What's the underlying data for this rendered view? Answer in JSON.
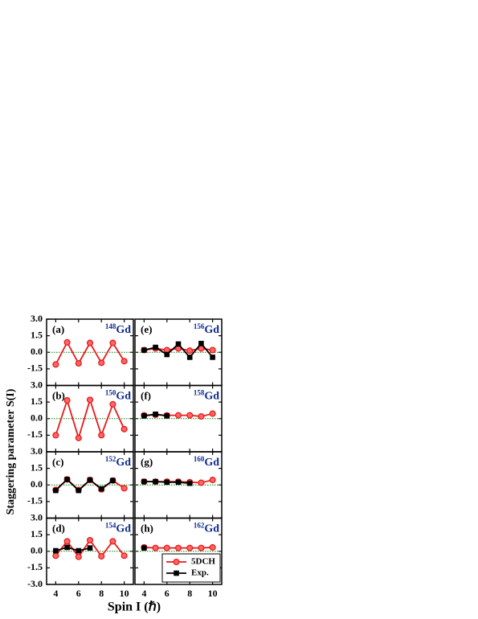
{
  "y_label": "Staggering parameter S(I)",
  "x_label": "Spin I (ℏ)",
  "chart_data": [
    {
      "type": "line",
      "panel": "(a)",
      "nucleus": {
        "mass": "148",
        "symbol": "Gd"
      },
      "x": [
        4,
        5,
        6,
        7,
        8,
        9,
        10
      ],
      "xlim": [
        3.2,
        10.8
      ],
      "xticks": [
        4,
        6,
        8,
        10
      ],
      "ylim": [
        -3,
        3
      ],
      "yticks": [
        {
          "value": -1.5,
          "label": "-1.5"
        },
        {
          "value": 0,
          "label": "0.0"
        },
        {
          "value": 1.5,
          "label": "1.5"
        },
        {
          "value": 3,
          "label": "3.0"
        }
      ],
      "hline": 0,
      "series": [
        {
          "color": "#e8191a",
          "marker": "circle",
          "values": [
            -1.1,
            0.9,
            -1.0,
            0.85,
            -0.95,
            0.85,
            -0.8
          ]
        }
      ]
    },
    {
      "type": "line",
      "panel": "(b)",
      "nucleus": {
        "mass": "150",
        "symbol": "Gd"
      },
      "x": [
        4,
        5,
        6,
        7,
        8,
        9,
        10
      ],
      "xlim": [
        3.2,
        10.8
      ],
      "xticks": [
        4,
        6,
        8,
        10
      ],
      "ylim": [
        -3,
        3
      ],
      "yticks": [
        {
          "value": -1.5,
          "label": "-1.5"
        },
        {
          "value": 0,
          "label": "0.0"
        },
        {
          "value": 1.5,
          "label": "1.5"
        },
        {
          "value": 3,
          "label": "3.0"
        }
      ],
      "hline": 0,
      "series": [
        {
          "color": "#e8191a",
          "marker": "circle",
          "values": [
            -1.5,
            1.65,
            -1.75,
            1.7,
            -1.5,
            1.3,
            -0.95
          ]
        }
      ]
    },
    {
      "type": "line",
      "panel": "(c)",
      "nucleus": {
        "mass": "152",
        "symbol": "Gd"
      },
      "x": [
        4,
        5,
        6,
        7,
        8,
        9,
        10
      ],
      "xlim": [
        3.2,
        10.8
      ],
      "xticks": [
        4,
        6,
        8,
        10
      ],
      "ylim": [
        -3,
        3
      ],
      "yticks": [
        {
          "value": -1.5,
          "label": "-1.5"
        },
        {
          "value": 0,
          "label": "0.0"
        },
        {
          "value": 1.5,
          "label": "1.5"
        },
        {
          "value": 3,
          "label": "3.0"
        }
      ],
      "hline": 0,
      "series": [
        {
          "color": "#e8191a",
          "marker": "circle",
          "values": [
            -0.45,
            0.5,
            -0.45,
            0.45,
            -0.4,
            0.4,
            -0.3
          ]
        },
        {
          "color": "#000000",
          "marker": "square",
          "values": [
            -0.5,
            0.5,
            -0.5,
            0.45,
            -0.35,
            0.4,
            null
          ]
        }
      ]
    },
    {
      "type": "line",
      "panel": "(d)",
      "nucleus": {
        "mass": "154",
        "symbol": "Gd"
      },
      "x": [
        4,
        5,
        6,
        7,
        8,
        9,
        10
      ],
      "xlim": [
        3.2,
        10.8
      ],
      "xticks": [
        4,
        6,
        8,
        10
      ],
      "ylim": [
        -3,
        3
      ],
      "yticks": [
        {
          "value": -3,
          "label": "-3.0"
        },
        {
          "value": -1.5,
          "label": "-1.5"
        },
        {
          "value": 0,
          "label": "0.0"
        },
        {
          "value": 1.5,
          "label": "1.5"
        },
        {
          "value": 3,
          "label": "3.0"
        }
      ],
      "hline": 0,
      "series": [
        {
          "color": "#e8191a",
          "marker": "circle",
          "values": [
            -0.4,
            0.9,
            -0.5,
            1.0,
            -0.45,
            0.9,
            -0.4
          ]
        },
        {
          "color": "#000000",
          "marker": "square",
          "values": [
            0.05,
            0.35,
            0.05,
            0.3,
            null,
            null,
            null
          ]
        }
      ]
    },
    {
      "type": "line",
      "panel": "(e)",
      "nucleus": {
        "mass": "156",
        "symbol": "Gd"
      },
      "x": [
        4,
        5,
        6,
        7,
        8,
        9,
        10
      ],
      "xlim": [
        3.2,
        10.8
      ],
      "xticks": [
        4,
        6,
        8,
        10
      ],
      "ylim": [
        -3,
        3
      ],
      "yticks": [
        -1.5,
        0,
        1.5
      ],
      "hline": 0,
      "series": [
        {
          "color": "#e8191a",
          "marker": "circle",
          "values": [
            0.2,
            0.35,
            0.2,
            0.35,
            0.15,
            0.35,
            0.2
          ]
        },
        {
          "color": "#000000",
          "marker": "square",
          "values": [
            0.2,
            0.45,
            -0.2,
            0.75,
            -0.45,
            0.8,
            -0.45
          ]
        }
      ]
    },
    {
      "type": "line",
      "panel": "(f)",
      "nucleus": {
        "mass": "158",
        "symbol": "Gd"
      },
      "x": [
        4,
        5,
        6,
        7,
        8,
        9,
        10
      ],
      "xlim": [
        3.2,
        10.8
      ],
      "xticks": [
        4,
        6,
        8,
        10
      ],
      "ylim": [
        -3,
        3
      ],
      "yticks": [
        -1.5,
        0,
        1.5
      ],
      "hline": 0,
      "series": [
        {
          "color": "#e8191a",
          "marker": "circle",
          "values": [
            0.3,
            0.35,
            0.3,
            0.3,
            0.3,
            0.2,
            0.45
          ]
        },
        {
          "color": "#000000",
          "marker": "square",
          "values": [
            0.25,
            0.4,
            0.25,
            null,
            null,
            null,
            null
          ]
        }
      ]
    },
    {
      "type": "line",
      "panel": "(g)",
      "nucleus": {
        "mass": "160",
        "symbol": "Gd"
      },
      "x": [
        4,
        5,
        6,
        7,
        8,
        9,
        10
      ],
      "xlim": [
        3.2,
        10.8
      ],
      "xticks": [
        4,
        6,
        8,
        10
      ],
      "ylim": [
        -3,
        3
      ],
      "yticks": [
        -1.5,
        0,
        1.5
      ],
      "hline": 0,
      "series": [
        {
          "color": "#e8191a",
          "marker": "circle",
          "values": [
            0.3,
            0.3,
            0.3,
            0.3,
            0.25,
            0.2,
            0.45
          ]
        },
        {
          "color": "#000000",
          "marker": "square",
          "values": [
            0.3,
            0.3,
            0.25,
            0.25,
            0.15,
            null,
            null
          ]
        }
      ]
    },
    {
      "type": "line",
      "panel": "(h)",
      "nucleus": {
        "mass": "162",
        "symbol": "Gd"
      },
      "x": [
        4,
        5,
        6,
        7,
        8,
        9,
        10
      ],
      "xlim": [
        3.2,
        10.8
      ],
      "xticks": [
        4,
        6,
        8,
        10
      ],
      "ylim": [
        -3,
        3
      ],
      "yticks": [
        -1.5,
        0,
        1.5
      ],
      "hline": 0,
      "legend": "lower right",
      "series": [
        {
          "name": "5DCH",
          "color": "#e8191a",
          "marker": "circle",
          "values": [
            0.35,
            0.3,
            0.3,
            0.3,
            0.3,
            0.3,
            0.35
          ]
        },
        {
          "name": "Exp.",
          "color": "#000000",
          "marker": "square",
          "values": [
            0.3,
            null,
            null,
            null,
            null,
            null,
            null
          ]
        }
      ]
    }
  ]
}
